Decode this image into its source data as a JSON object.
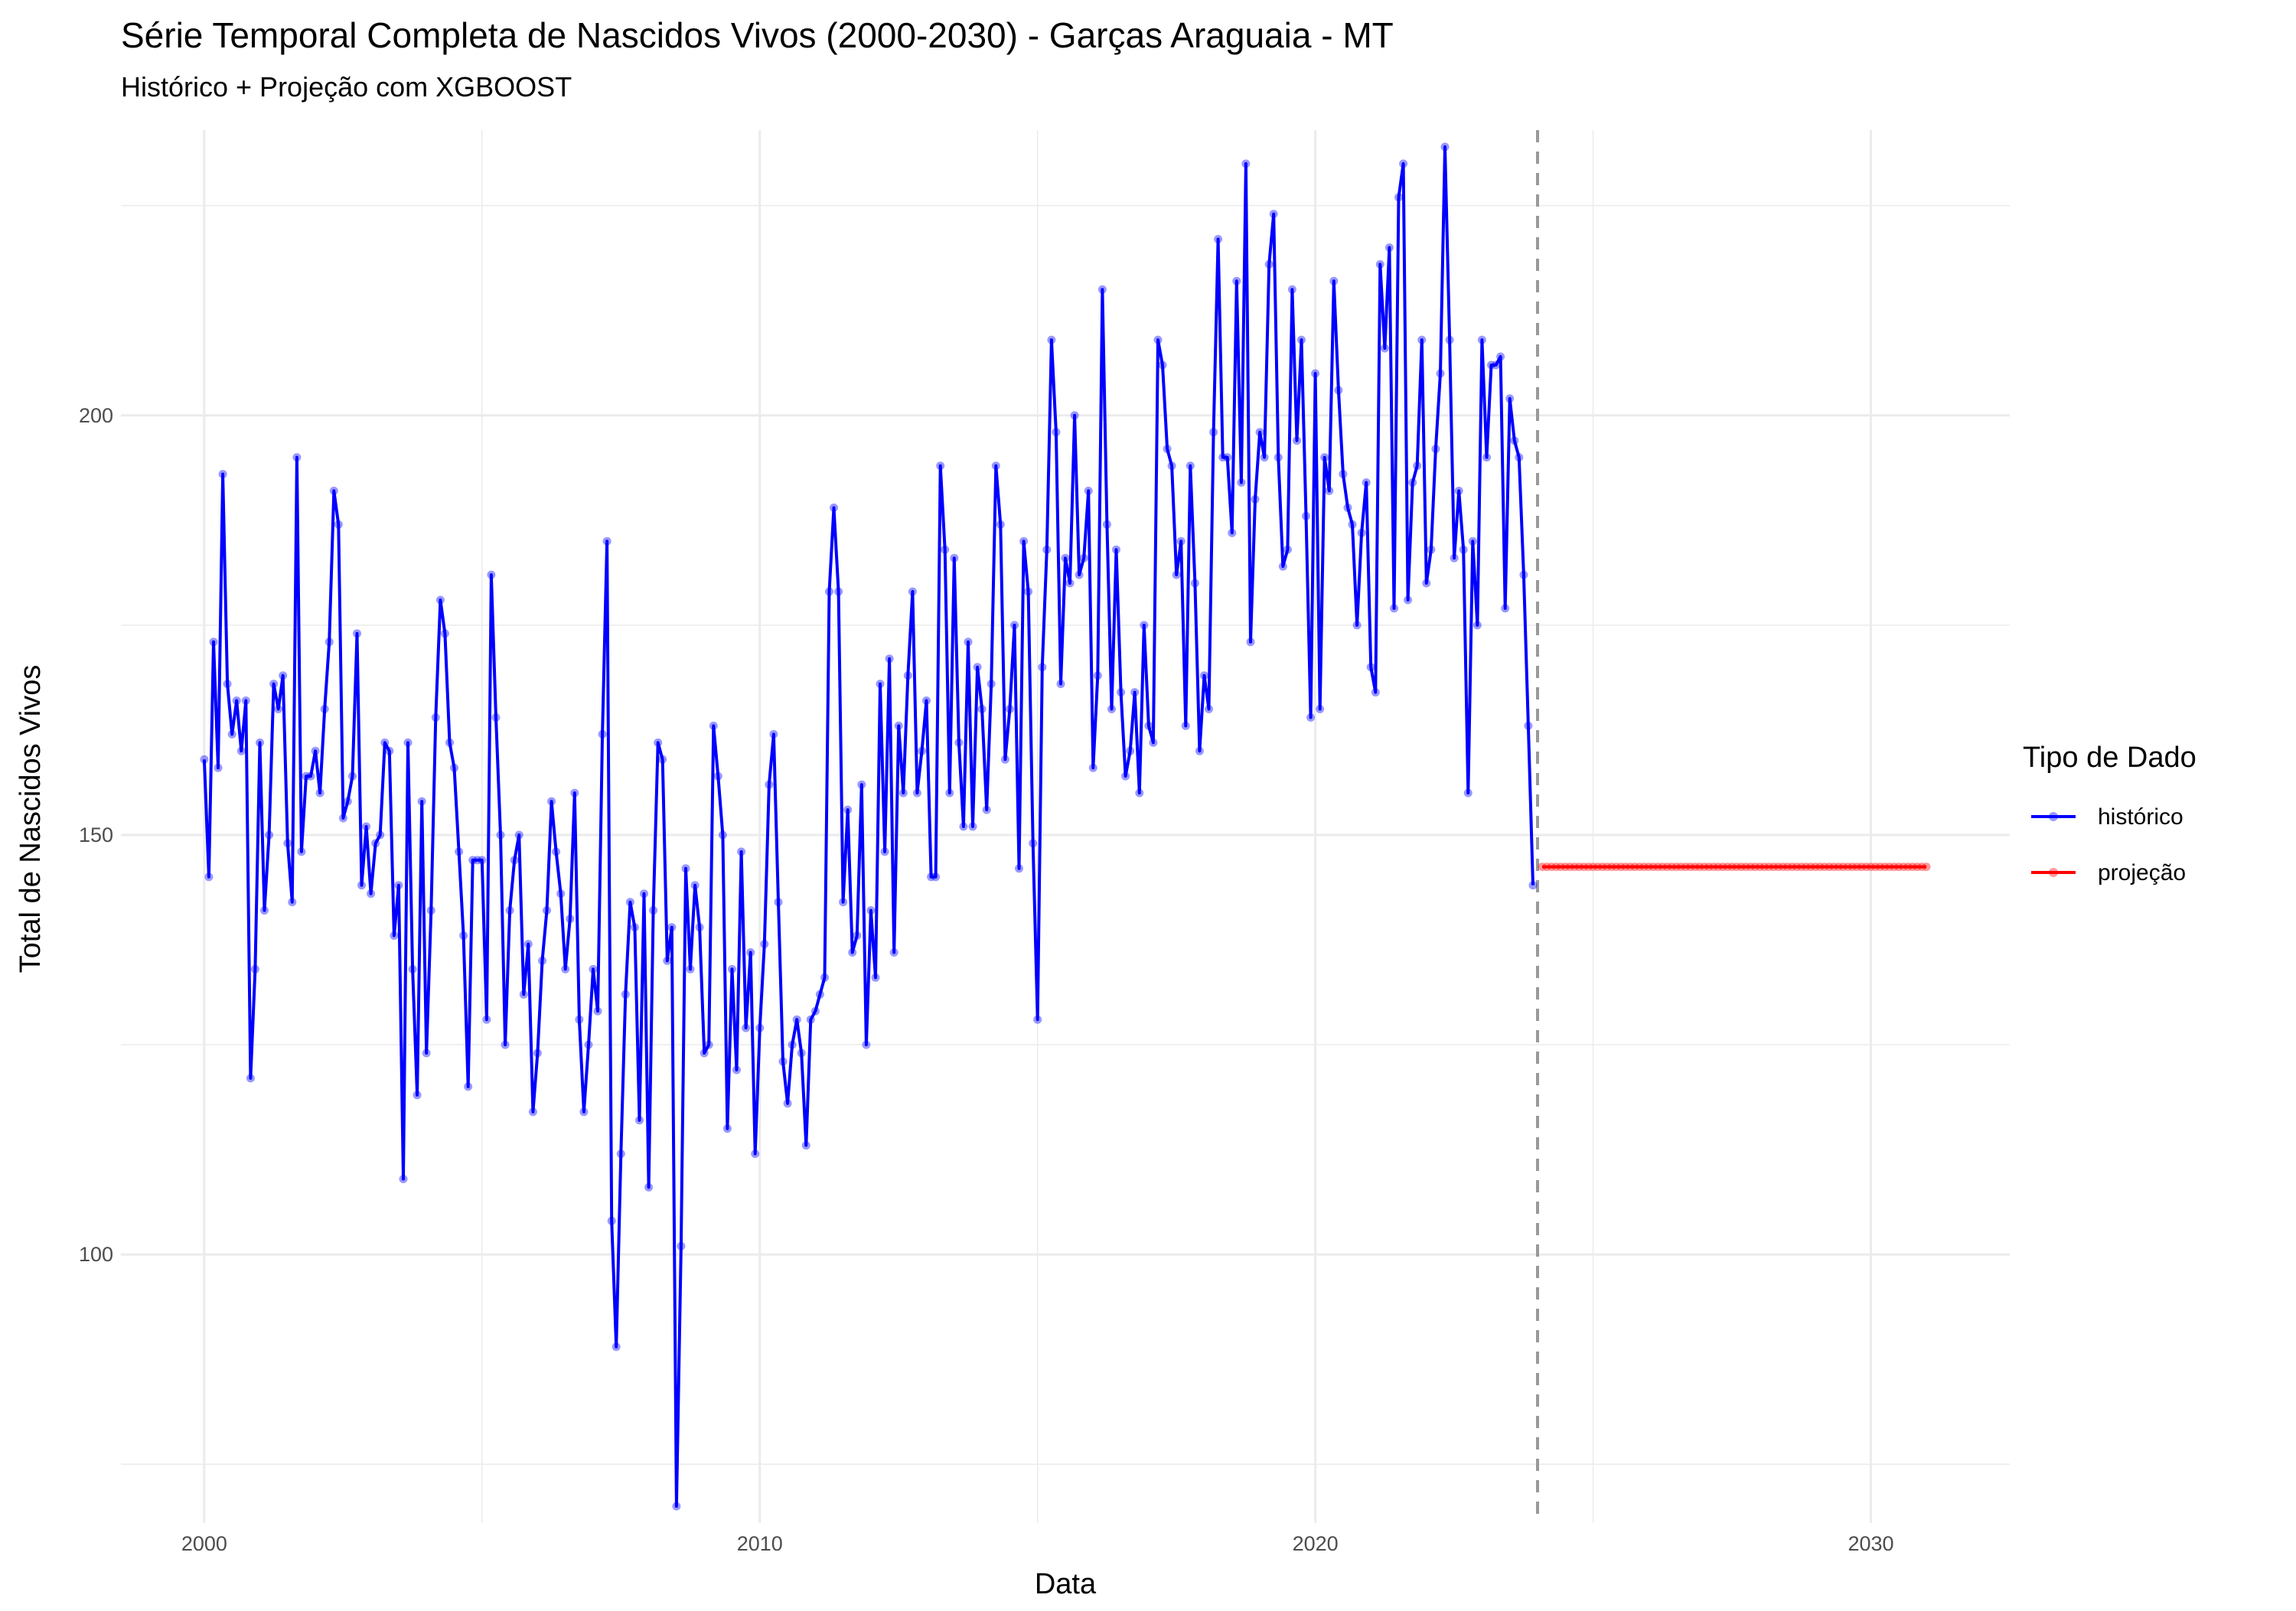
{
  "chart_data": {
    "type": "line",
    "title": "Série Temporal Completa de Nascidos Vivos (2000-2030) -  Garças Araguaia - MT",
    "subtitle": "Histórico + Projeção com XGBOOST",
    "xlabel": "Data",
    "ylabel": "Total de Nascidos Vivos",
    "xlim": [
      1998.5,
      2032.5
    ],
    "ylim": [
      68,
      234
    ],
    "x_ticks": [
      2000,
      2010,
      2020,
      2030
    ],
    "x_tick_labels": [
      "2000",
      "2010",
      "2020",
      "2030"
    ],
    "y_ticks": [
      100,
      150,
      200
    ],
    "y_tick_labels": [
      "100",
      "150",
      "200"
    ],
    "grid": true,
    "legend": {
      "title": "Tipo de Dado",
      "position": "right",
      "entries": [
        {
          "label": "histórico",
          "color": "#0000ff"
        },
        {
          "label": "projeção",
          "color": "#ff0000"
        }
      ]
    },
    "vline": {
      "x": 2024,
      "color": "#999999",
      "style": "dashed"
    },
    "series": [
      {
        "name": "histórico",
        "color": "#0000ff",
        "x_start": 2000.0,
        "x_step": 0.0833333,
        "values": [
          159,
          145,
          173,
          158,
          193,
          168,
          162,
          166,
          160,
          166,
          121,
          134,
          161,
          141,
          150,
          168,
          165,
          169,
          149,
          142,
          195,
          148,
          157,
          157,
          160,
          155,
          165,
          173,
          191,
          187,
          152,
          154,
          157,
          174,
          144,
          151,
          143,
          149,
          150,
          161,
          160,
          138,
          144,
          109,
          161,
          134,
          119,
          154,
          124,
          141,
          164,
          178,
          174,
          161,
          158,
          148,
          138,
          120,
          147,
          147,
          147,
          128,
          181,
          164,
          150,
          125,
          141,
          147,
          150,
          131,
          137,
          117,
          124,
          135,
          141,
          154,
          148,
          143,
          134,
          140,
          155,
          128,
          117,
          125,
          134,
          129,
          162,
          185,
          104,
          89,
          112,
          131,
          142,
          139,
          116,
          143,
          108,
          141,
          161,
          159,
          135,
          139,
          70,
          101,
          146,
          134,
          144,
          139,
          124,
          125,
          163,
          157,
          150,
          115,
          134,
          122,
          148,
          127,
          136,
          112,
          127,
          137,
          156,
          162,
          142,
          123,
          118,
          125,
          128,
          124,
          113,
          128,
          129,
          131,
          133,
          179,
          189,
          179,
          142,
          153,
          136,
          138,
          156,
          125,
          141,
          133,
          168,
          148,
          171,
          136,
          163,
          155,
          169,
          179,
          155,
          160,
          166,
          145,
          145,
          194,
          184,
          155,
          183,
          161,
          151,
          173,
          151,
          170,
          165,
          153,
          168,
          194,
          187,
          159,
          165,
          175,
          146,
          185,
          179,
          149,
          128,
          170,
          184,
          209,
          198,
          168,
          183,
          180,
          200,
          181,
          183,
          191,
          158,
          169,
          215,
          187,
          165,
          184,
          167,
          157,
          160,
          167,
          155,
          175,
          163,
          161,
          209,
          206,
          196,
          194,
          181,
          185,
          163,
          194,
          180,
          160,
          169,
          165,
          198,
          221,
          195,
          195,
          186,
          216,
          192,
          230,
          173,
          190,
          198,
          195,
          218,
          224,
          195,
          182,
          184,
          215,
          197,
          209,
          188,
          164,
          205,
          165,
          195,
          191,
          216,
          203,
          193,
          189,
          187,
          175,
          186,
          192,
          170,
          167,
          218,
          208,
          220,
          177,
          226,
          230,
          178,
          192,
          194,
          209,
          180,
          184,
          196,
          205,
          232,
          209,
          183,
          191,
          184,
          155,
          185,
          175,
          209,
          195,
          206,
          206,
          207,
          177,
          202,
          197,
          195,
          181,
          163,
          144
        ]
      },
      {
        "name": "projeção",
        "color": "#ff0000",
        "x_start": 2024.0833,
        "x_step": 0.0833333,
        "count": 84,
        "value": 146.2
      }
    ]
  }
}
